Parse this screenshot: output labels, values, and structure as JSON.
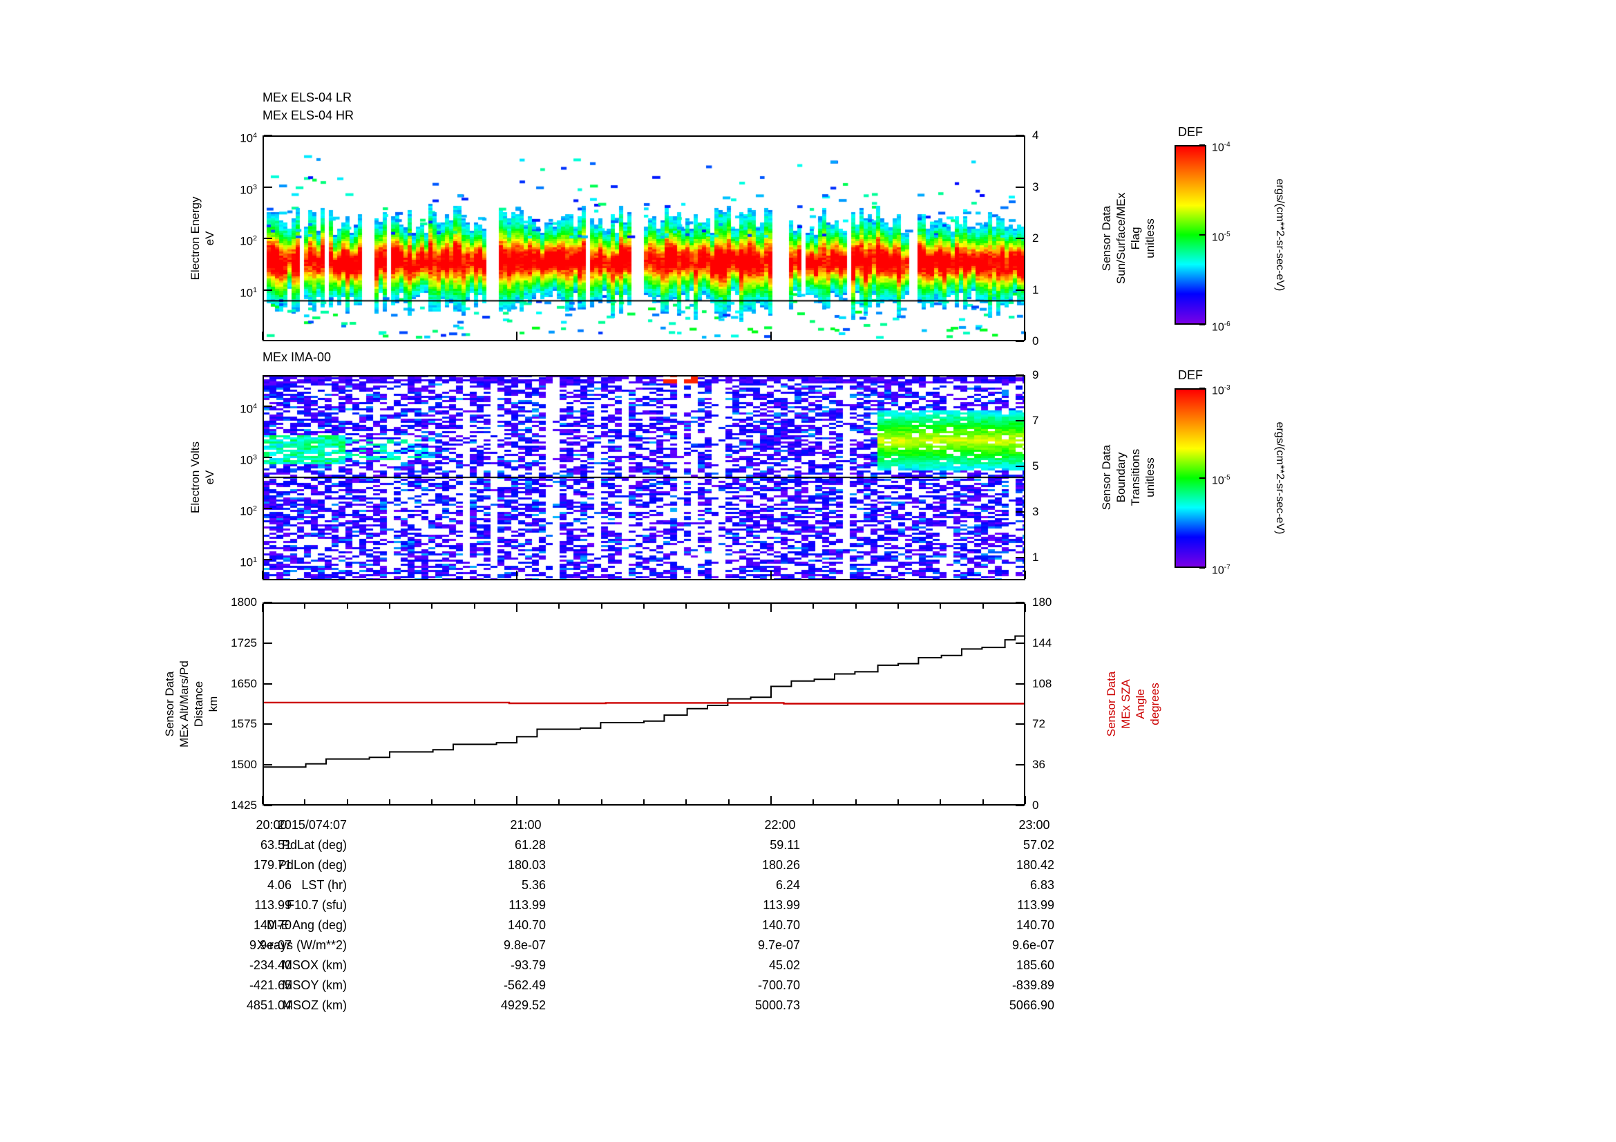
{
  "page": {
    "background": "#ffffff"
  },
  "colors": {
    "accent_red": "#cc0000",
    "frame": "#000000",
    "rainbow_stops": [
      "#ff0000",
      "#ff8000",
      "#ffff00",
      "#00ff00",
      "#00ffff",
      "#0000ff",
      "#7a00e6"
    ]
  },
  "chart_data": [
    {
      "type": "heatmap",
      "instrument": "MEx ELS-04",
      "titles": [
        "MEx ELS-04 LR",
        "MEx ELS-04 HR"
      ],
      "x_range": [
        "20:00",
        "23:00"
      ],
      "y_axis": {
        "label_lines": [
          "Electron Energy",
          "eV"
        ],
        "scale": "log",
        "log10_range": [
          0,
          4
        ],
        "ticks": [
          "10^4",
          "10^3",
          "10^2",
          "10^1"
        ]
      },
      "right_axis": {
        "label_lines": [
          "Sensor Data",
          "Sun/Surface/MEx",
          "Flag",
          "unitless"
        ],
        "range": [
          0,
          4
        ],
        "ticks": [
          "4",
          "3",
          "2",
          "1",
          "0"
        ]
      },
      "flag_line_value": 0.8,
      "colorbar": {
        "title": "DEF",
        "units": "ergs/(cm**2-sr-sec-eV)",
        "ticks": [
          "10^-4",
          "10^-5",
          "10^-6"
        ]
      },
      "content_summary": "Intense electron flux band (red/orange core with yellow-green-cyan fringes) between ~10 and 100 eV, sparse blue/cyan dashes up to ~10^3.5 eV and below 10 eV, periodic vertical data gaps, black flag trace near 0.8",
      "render": {
        "seed": 7,
        "gaps": [
          [
            0.127,
            0.143
          ],
          [
            0.292,
            0.306
          ],
          [
            0.483,
            0.499
          ],
          [
            0.666,
            0.687
          ],
          [
            0.843,
            0.858
          ]
        ],
        "core_center_log": 1.55,
        "core_sigma": 0.36
      }
    },
    {
      "type": "heatmap",
      "instrument": "MEx IMA-00",
      "titles": [
        "MEx IMA-00"
      ],
      "x_range": [
        "20:00",
        "23:00"
      ],
      "y_axis": {
        "label_lines": [
          "Electron Volts",
          "eV"
        ],
        "scale": "log",
        "log10_range": [
          0.6,
          4.6
        ],
        "ticks": [
          "10^4",
          "10^3",
          "10^2",
          "10^1"
        ]
      },
      "right_axis": {
        "label_lines": [
          "Sensor Data",
          "Boundary",
          "Transitions",
          "unitless"
        ],
        "range": [
          0,
          9
        ],
        "ticks": [
          "9",
          "7",
          "5",
          "3",
          "1"
        ]
      },
      "black_line_log10": 2.62,
      "colorbar": {
        "title": "DEF",
        "units": "ergs/(cm**2-sr-sec-eV)",
        "ticks": [
          "10^-3",
          "10^-5",
          "10^-7"
        ]
      },
      "content_summary": "Mostly blue-violet striped ion flux with white gaps; cyan enhancement near 10^3 eV before ~20:20 and broad cyan/green/yellow patch after ~22:25; black horizontal line near 10^2.6",
      "render": {
        "seed": 13
      }
    },
    {
      "type": "line",
      "x_ticks": [
        "20:00",
        "21:00",
        "22:00",
        "23:00"
      ],
      "x_hours_range": [
        0,
        3
      ],
      "left_axis": {
        "label_lines": [
          "Sensor Data",
          "MEx Alt/Mars/Pd",
          "Distance",
          "km"
        ],
        "range": [
          1425,
          1800
        ],
        "ticks": [
          "1800",
          "1725",
          "1650",
          "1575",
          "1500",
          "1425"
        ]
      },
      "right_axis": {
        "label_lines": [
          "Sensor Data",
          "MEx SZA",
          "Angle",
          "degrees"
        ],
        "range": [
          0,
          180
        ],
        "ticks": [
          "180",
          "144",
          "108",
          "72",
          "36",
          "0"
        ],
        "color": "#cc0000"
      },
      "series": [
        {
          "name": "MEx Alt/Mars/Pd Distance (km)",
          "axis": "left",
          "color": "#000000",
          "step": true,
          "points": [
            [
              0.0,
              1496
            ],
            [
              0.17,
              1502
            ],
            [
              0.25,
              1511
            ],
            [
              0.42,
              1514
            ],
            [
              0.5,
              1524
            ],
            [
              0.67,
              1528
            ],
            [
              0.75,
              1538
            ],
            [
              0.92,
              1541
            ],
            [
              1.0,
              1552
            ],
            [
              1.08,
              1566
            ],
            [
              1.25,
              1568
            ],
            [
              1.33,
              1578
            ],
            [
              1.5,
              1581
            ],
            [
              1.58,
              1592
            ],
            [
              1.67,
              1604
            ],
            [
              1.75,
              1610
            ],
            [
              1.83,
              1622
            ],
            [
              1.92,
              1625
            ],
            [
              2.0,
              1645
            ],
            [
              2.08,
              1655
            ],
            [
              2.17,
              1658
            ],
            [
              2.25,
              1668
            ],
            [
              2.33,
              1672
            ],
            [
              2.42,
              1684
            ],
            [
              2.5,
              1687
            ],
            [
              2.58,
              1698
            ],
            [
              2.67,
              1702
            ],
            [
              2.75,
              1714
            ],
            [
              2.83,
              1717
            ],
            [
              2.92,
              1731
            ],
            [
              2.96,
              1738
            ],
            [
              3.0,
              1738
            ]
          ]
        },
        {
          "name": "MEx SZA Angle (deg)",
          "axis": "right",
          "color": "#cc0000",
          "step": true,
          "points": [
            [
              0,
              91.3
            ],
            [
              0.97,
              91.3
            ],
            [
              0.97,
              90.6
            ],
            [
              1.35,
              90.6
            ],
            [
              1.35,
              91.0
            ],
            [
              2.05,
              91.0
            ],
            [
              2.05,
              90.3
            ],
            [
              3,
              90.3
            ]
          ]
        }
      ]
    }
  ],
  "table": {
    "date_label": "2015/074:07",
    "time_ticks": [
      "20:00",
      "21:00",
      "22:00",
      "23:00"
    ],
    "rows": [
      {
        "label": "PdLat (deg)",
        "values": [
          "63.51",
          "61.28",
          "59.11",
          "57.02"
        ]
      },
      {
        "label": "PdLon (deg)",
        "values": [
          "179.71",
          "180.03",
          "180.26",
          "180.42"
        ]
      },
      {
        "label": "LST (hr)",
        "values": [
          "4.06",
          "5.36",
          "6.24",
          "6.83"
        ]
      },
      {
        "label": "F10.7 (sfu)",
        "values": [
          "113.99",
          "113.99",
          "113.99",
          "113.99"
        ]
      },
      {
        "label": "M-E Ang (deg)",
        "values": [
          "140.70",
          "140.70",
          "140.70",
          "140.70"
        ]
      },
      {
        "label": "X-rays (W/m**2)",
        "values": [
          "9.9e-07",
          "9.8e-07",
          "9.7e-07",
          "9.6e-07"
        ]
      },
      {
        "label": "MSOX (km)",
        "values": [
          "-234.40",
          "-93.79",
          "45.02",
          "185.60"
        ]
      },
      {
        "label": "MSOY (km)",
        "values": [
          "-421.65",
          "-562.49",
          "-700.70",
          "-839.89"
        ]
      },
      {
        "label": "MSOZ (km)",
        "values": [
          "4851.04",
          "4929.52",
          "5000.73",
          "5066.90"
        ]
      }
    ]
  }
}
